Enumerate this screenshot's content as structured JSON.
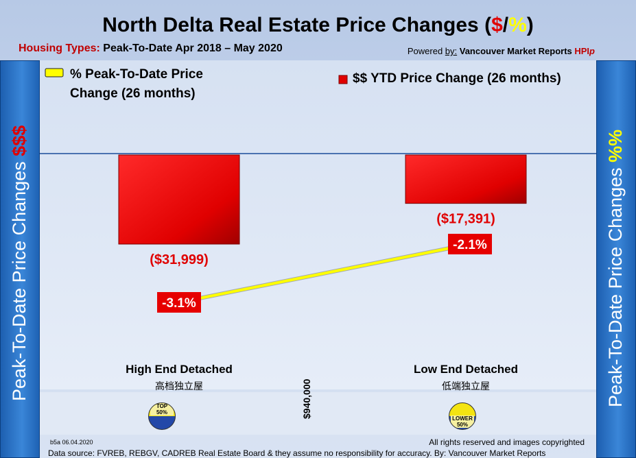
{
  "header": {
    "title_main": "North Delta Real Estate Price Changes (",
    "title_dollar": "$",
    "title_slash": "/",
    "title_pct": "%",
    "title_close": ")",
    "sub_label": "Housing Types:",
    "sub_text": " Peak-To-Date Apr 2018 – May 2020",
    "powered_prefix": "Powered ",
    "powered_by": "by:",
    "powered_name": " Vancouver Market Reports ",
    "powered_hpi": "HPI",
    "powered_p": "p"
  },
  "sidebars": {
    "left_text": "Peak-To-Date Price Changes ",
    "left_accent": "$$$",
    "right_text": "Peak-To-Date  Price  Changes  ",
    "right_accent": "%%"
  },
  "chart_data": {
    "type": "bar",
    "categories": [
      "High End Detached",
      "Low End Detached"
    ],
    "categories_zh": [
      "高档独立屋",
      "低端独立屋"
    ],
    "series": [
      {
        "name": "$$ YTD Price Change (26 months)",
        "type": "bar",
        "values": [
          -31999,
          -17391
        ],
        "labels": [
          "($31,999)",
          "($17,391)"
        ],
        "color": "#e00000"
      },
      {
        "name": "% Peak-To-Date Price Change (26 months)",
        "type": "line",
        "values": [
          -3.1,
          -2.1
        ],
        "labels": [
          "-3.1%",
          "-2.1%"
        ],
        "color": "#ffff00"
      }
    ],
    "divider_label": "$940,000",
    "badges": [
      "TOP 50%",
      "LOWER 50%"
    ],
    "legend": [
      "% Peak-To-Date Price Change (26 months)",
      "$$ YTD Price Change (26 months)"
    ]
  },
  "legend_pct_line1": "% Peak-To-Date Price",
  "legend_pct_line2": "Change (26 months)",
  "legend_dollar": "$$ YTD Price Change (26 months)",
  "badge_top_1": "TOP",
  "badge_top_2": "50%",
  "badge_low_1": "LOWER",
  "badge_low_2": "50%",
  "footer": {
    "code": "b5a 06.04.2020",
    "rights": "All rights reserved and  images copyrighted",
    "source": "Data source: FVREB, REBGV, CADREB Real Estate Board & they assume no responsibility for accuracy. By: Vancouver Market Reports"
  },
  "colors": {
    "bar": "#e00000",
    "line": "#ffff00",
    "sidebar": "#2e78cc",
    "label_red": "#e00000"
  }
}
